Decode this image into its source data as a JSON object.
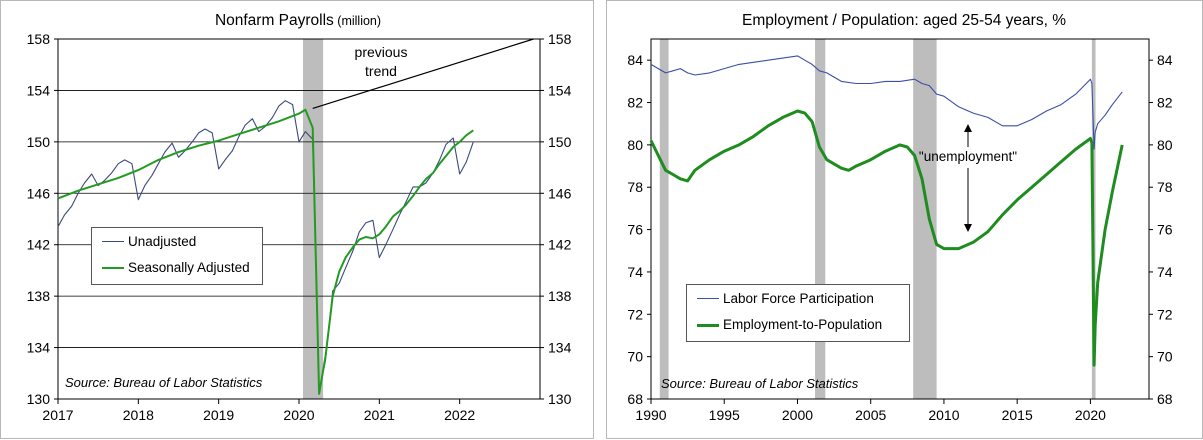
{
  "chart_data": [
    {
      "type": "line",
      "title": "Nonfarm Payrolls",
      "title_unit": "(million)",
      "source": "Source: Bureau of Labor Statistics",
      "annotations": [
        "previous",
        "trend"
      ],
      "xlabel": "",
      "ylabel": "",
      "x_ticks": [
        "2017",
        "2018",
        "2019",
        "2020",
        "2021",
        "2022"
      ],
      "y_ticks": [
        130,
        134,
        138,
        142,
        146,
        150,
        154,
        158
      ],
      "xlim": [
        2017,
        2023
      ],
      "ylim": [
        130,
        158
      ],
      "grid": "horizontal",
      "shaded_periods": [
        [
          2020.05,
          2020.3
        ]
      ],
      "legend_position": "middle-left",
      "series": [
        {
          "name": "Unadjusted",
          "color": "#3b4a7e",
          "x": [
            2017.0,
            2017.08,
            2017.17,
            2017.25,
            2017.33,
            2017.42,
            2017.5,
            2017.58,
            2017.67,
            2017.75,
            2017.83,
            2017.92,
            2018.0,
            2018.08,
            2018.17,
            2018.25,
            2018.33,
            2018.42,
            2018.5,
            2018.58,
            2018.67,
            2018.75,
            2018.83,
            2018.92,
            2019.0,
            2019.08,
            2019.17,
            2019.25,
            2019.33,
            2019.42,
            2019.5,
            2019.58,
            2019.67,
            2019.75,
            2019.83,
            2019.92,
            2020.0,
            2020.08,
            2020.17,
            2020.25,
            2020.33,
            2020.42,
            2020.5,
            2020.58,
            2020.67,
            2020.75,
            2020.83,
            2020.92,
            2021.0,
            2021.08,
            2021.17,
            2021.25,
            2021.33,
            2021.42,
            2021.5,
            2021.58,
            2021.67,
            2021.75,
            2021.83,
            2021.92,
            2022.0,
            2022.08,
            2022.17
          ],
          "values": [
            143.4,
            144.3,
            145.0,
            146.0,
            146.8,
            147.5,
            146.6,
            147.0,
            147.6,
            148.3,
            148.6,
            148.3,
            145.5,
            146.6,
            147.4,
            148.3,
            149.2,
            149.9,
            148.8,
            149.3,
            150.0,
            150.7,
            151.0,
            150.7,
            147.9,
            148.6,
            149.3,
            150.4,
            151.3,
            151.8,
            150.8,
            151.2,
            151.9,
            152.8,
            153.2,
            152.9,
            150.0,
            150.8,
            150.2,
            130.5,
            133.0,
            138.4,
            139.0,
            140.2,
            141.5,
            143.0,
            143.7,
            143.9,
            141.0,
            142.0,
            143.2,
            144.3,
            145.3,
            146.5,
            146.5,
            146.8,
            147.6,
            148.6,
            149.8,
            150.3,
            147.5,
            148.4,
            150.0
          ]
        },
        {
          "name": "Seasonally Adjusted",
          "color": "#239b23",
          "x": [
            2017.0,
            2017.25,
            2017.5,
            2017.75,
            2018.0,
            2018.25,
            2018.5,
            2018.75,
            2019.0,
            2019.25,
            2019.5,
            2019.75,
            2020.0,
            2020.08,
            2020.17,
            2020.25,
            2020.33,
            2020.42,
            2020.5,
            2020.58,
            2020.67,
            2020.75,
            2020.83,
            2020.92,
            2021.0,
            2021.08,
            2021.17,
            2021.25,
            2021.33,
            2021.42,
            2021.5,
            2021.58,
            2021.67,
            2021.75,
            2021.83,
            2021.92,
            2022.0,
            2022.08,
            2022.17
          ],
          "values": [
            145.6,
            146.2,
            146.7,
            147.2,
            147.8,
            148.6,
            149.2,
            149.7,
            150.1,
            150.6,
            151.1,
            151.6,
            152.2,
            152.5,
            151.1,
            130.4,
            133.3,
            138.0,
            139.9,
            141.0,
            141.8,
            142.4,
            142.6,
            142.5,
            142.8,
            143.4,
            144.2,
            144.6,
            145.1,
            145.8,
            146.5,
            147.1,
            147.6,
            148.3,
            148.9,
            149.6,
            150.0,
            150.5,
            150.9
          ]
        },
        {
          "name": "",
          "color": "#000000",
          "x": [
            2020.17,
            2022.92
          ],
          "values": [
            152.6,
            158.0
          ]
        }
      ]
    },
    {
      "type": "line",
      "title": "Employment / Population: aged 25-54 years, %",
      "source": "Source: Bureau of Labor Statistics",
      "annotations": [
        "\"unemployment\""
      ],
      "xlabel": "",
      "ylabel": "",
      "x_ticks": [
        "1990",
        "1995",
        "2000",
        "2005",
        "2010",
        "2015",
        "2020"
      ],
      "y_ticks": [
        68,
        70,
        72,
        74,
        76,
        78,
        80,
        82,
        84
      ],
      "xlim": [
        1990,
        2024
      ],
      "ylim": [
        68,
        85
      ],
      "grid": "none",
      "shaded_periods": [
        [
          1990.6,
          1991.2
        ],
        [
          2001.2,
          2001.9
        ],
        [
          2007.9,
          2009.5
        ],
        [
          2020.1,
          2020.35
        ]
      ],
      "legend_position": "lower-left",
      "series": [
        {
          "name": "Labor Force Participation",
          "color": "#3b4fa5",
          "x": [
            1990,
            1990.5,
            1991,
            1991.5,
            1992,
            1992.5,
            1993,
            1994,
            1995,
            1996,
            1997,
            1998,
            1999,
            2000,
            2000.5,
            2001,
            2001.5,
            2002,
            2003,
            2004,
            2005,
            2006,
            2007,
            2008,
            2008.5,
            2009,
            2009.5,
            2010,
            2011,
            2012,
            2013,
            2014,
            2015,
            2016,
            2017,
            2018,
            2019,
            2020.0,
            2020.1,
            2020.25,
            2020.33,
            2020.5,
            2021,
            2021.5,
            2022.17
          ],
          "values": [
            83.8,
            83.6,
            83.4,
            83.5,
            83.6,
            83.4,
            83.3,
            83.4,
            83.6,
            83.8,
            83.9,
            84.0,
            84.1,
            84.2,
            84.0,
            83.8,
            83.5,
            83.4,
            83.0,
            82.9,
            82.9,
            83.0,
            83.0,
            83.1,
            82.9,
            82.8,
            82.4,
            82.3,
            81.8,
            81.5,
            81.3,
            80.9,
            80.9,
            81.2,
            81.6,
            81.9,
            82.4,
            83.1,
            82.9,
            79.8,
            80.6,
            81.0,
            81.4,
            81.9,
            82.5
          ]
        },
        {
          "name": "Employment-to-Population",
          "color": "#1e8c1e",
          "x": [
            1990,
            1990.5,
            1991,
            1991.5,
            1992,
            1992.5,
            1993,
            1994,
            1995,
            1996,
            1997,
            1998,
            1999,
            2000,
            2000.5,
            2001,
            2001.5,
            2002,
            2003,
            2003.5,
            2004,
            2005,
            2006,
            2007,
            2007.5,
            2008,
            2008.5,
            2009,
            2009.5,
            2010,
            2011,
            2012,
            2013,
            2014,
            2015,
            2016,
            2017,
            2018,
            2019,
            2020.0,
            2020.1,
            2020.25,
            2020.33,
            2020.5,
            2021,
            2021.5,
            2022.17
          ],
          "values": [
            80.2,
            79.5,
            78.8,
            78.6,
            78.4,
            78.3,
            78.8,
            79.3,
            79.7,
            80.0,
            80.4,
            80.9,
            81.3,
            81.6,
            81.5,
            81.1,
            79.9,
            79.3,
            78.9,
            78.8,
            79.0,
            79.3,
            79.7,
            80.0,
            79.9,
            79.5,
            78.4,
            76.5,
            75.3,
            75.1,
            75.1,
            75.4,
            75.9,
            76.7,
            77.4,
            78.0,
            78.6,
            79.2,
            79.8,
            80.3,
            80.1,
            69.6,
            71.5,
            73.5,
            76.0,
            77.8,
            80.0
          ]
        }
      ]
    }
  ],
  "colors": {
    "recession_shading": "#bdbdbd",
    "grid": "#000000",
    "axis": "#000000"
  }
}
